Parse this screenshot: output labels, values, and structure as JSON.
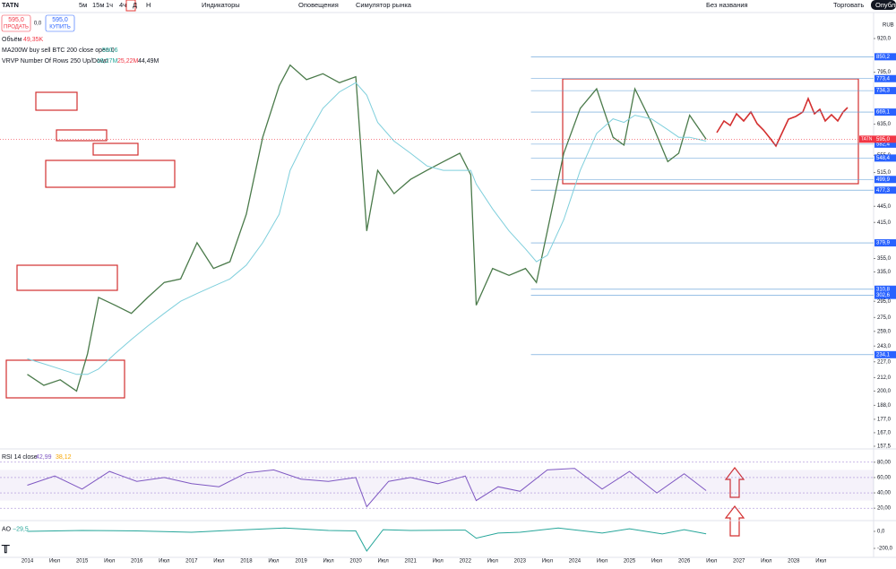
{
  "toolbar": {
    "symbol": "TATN",
    "sell_price": "595,0",
    "sell": "ПРОДАТЬ",
    "spread": "0,0",
    "buy_price": "595,0",
    "buy": "КУПИТЬ",
    "intervals": [
      "5м",
      "15м",
      "1ч",
      "4ч",
      "Д",
      "Н"
    ],
    "indicators": "Индикаторы",
    "alerts": "Оповещения",
    "replay": "Симулятор рынка",
    "layout": "Без названия",
    "trade": "Торговать",
    "publish": "Опубли"
  },
  "legend": {
    "volume": "Объём",
    "volume_value": "49,35K",
    "ma": "MA200W buy sell BTC 200 close open 0",
    "ma_value": "590,6",
    "vrvp": "VRVP Number Of Rows 250 Up/Down",
    "vrvp_up": "19,27M",
    "vrvp_down": "25,22M",
    "vrvp_total": "44,49M",
    "currency": "RUB",
    "price_tag_symbol": "TATN",
    "price_tag": "595,0"
  },
  "chart_data": [
    {
      "type": "line",
      "log_scale": true,
      "x": [
        2014.0,
        2014.3,
        2014.6,
        2014.9,
        2015.1,
        2015.3,
        2015.6,
        2015.9,
        2016.2,
        2016.5,
        2016.8,
        2017.1,
        2017.4,
        2017.7,
        2018.0,
        2018.3,
        2018.6,
        2018.8,
        2019.1,
        2019.4,
        2019.7,
        2020.0,
        2020.2,
        2020.4,
        2020.7,
        2021.0,
        2021.3,
        2021.6,
        2021.9,
        2022.1,
        2022.2,
        2022.5,
        2022.8,
        2023.1,
        2023.3,
        2023.5,
        2023.8,
        2024.1,
        2024.4,
        2024.7,
        2024.9,
        2025.1,
        2025.4,
        2025.7,
        2025.9,
        2026.1,
        2026.4
      ],
      "series": [
        {
          "color": "#4a7a4a",
          "values": [
            215,
            205,
            210,
            200,
            235,
            300,
            290,
            280,
            300,
            320,
            325,
            380,
            340,
            350,
            430,
            600,
            750,
            820,
            770,
            790,
            760,
            780,
            400,
            520,
            470,
            500,
            520,
            540,
            560,
            510,
            290,
            340,
            330,
            340,
            320,
            400,
            560,
            680,
            740,
            600,
            580,
            740,
            640,
            540,
            560,
            660,
            595
          ]
        },
        {
          "color": "#7fcfdc",
          "values": [
            230,
            225,
            220,
            215,
            215,
            220,
            235,
            250,
            265,
            280,
            295,
            305,
            315,
            325,
            345,
            380,
            430,
            520,
            600,
            680,
            730,
            760,
            720,
            640,
            590,
            560,
            530,
            520,
            520,
            520,
            490,
            440,
            400,
            370,
            350,
            360,
            420,
            520,
            610,
            650,
            640,
            660,
            650,
            620,
            600,
            600,
            590
          ]
        }
      ],
      "xlim": [
        2013.5,
        2029.46
      ],
      "xticks": [
        {
          "value": 2014,
          "label": "2014"
        },
        {
          "value": 2014.5,
          "label": "Июл"
        },
        {
          "value": 2015,
          "label": "2015"
        },
        {
          "value": 2015.5,
          "label": "Июл"
        },
        {
          "value": 2016,
          "label": "2016"
        },
        {
          "value": 2016.5,
          "label": "Июл"
        },
        {
          "value": 2017,
          "label": "2017"
        },
        {
          "value": 2017.5,
          "label": "Июл"
        },
        {
          "value": 2018,
          "label": "2018"
        },
        {
          "value": 2018.5,
          "label": "Июл"
        },
        {
          "value": 2019,
          "label": "2019"
        },
        {
          "value": 2019.5,
          "label": "Июл"
        },
        {
          "value": 2020,
          "label": "2020"
        },
        {
          "value": 2020.5,
          "label": "Июл"
        },
        {
          "value": 2021,
          "label": "2021"
        },
        {
          "value": 2021.5,
          "label": "Июл"
        },
        {
          "value": 2022,
          "label": "2022"
        },
        {
          "value": 2022.5,
          "label": "Июл"
        },
        {
          "value": 2023,
          "label": "2023"
        },
        {
          "value": 2023.5,
          "label": "Июл"
        },
        {
          "value": 2024,
          "label": "2024"
        },
        {
          "value": 2024.5,
          "label": "Июл"
        },
        {
          "value": 2025,
          "label": "2025"
        },
        {
          "value": 2025.5,
          "label": "Июл"
        },
        {
          "value": 2026,
          "label": "2026"
        },
        {
          "value": 2026.5,
          "label": "Июл"
        },
        {
          "value": 2027,
          "label": "2027"
        },
        {
          "value": 2027.5,
          "label": "Июл"
        },
        {
          "value": 2028,
          "label": "2028"
        },
        {
          "value": 2028.5,
          "label": "Июл"
        }
      ],
      "ylim": [
        157.5,
        920
      ],
      "yticks": [
        {
          "value": 920,
          "label": "920,0"
        },
        {
          "value": 795,
          "label": "795,0"
        },
        {
          "value": 635,
          "label": "635,0"
        },
        {
          "value": 555,
          "label": "555,0"
        },
        {
          "value": 515,
          "label": "515,0"
        },
        {
          "value": 445,
          "label": "445,0"
        },
        {
          "value": 415,
          "label": "415,0"
        },
        {
          "value": 355,
          "label": "355,0"
        },
        {
          "value": 335,
          "label": "335,0"
        },
        {
          "value": 295,
          "label": "295,0"
        },
        {
          "value": 275,
          "label": "275,0"
        },
        {
          "value": 259,
          "label": "259,0"
        },
        {
          "value": 243,
          "label": "243,0"
        },
        {
          "value": 227,
          "label": "227,0"
        },
        {
          "value": 212,
          "label": "212,0"
        },
        {
          "value": 200,
          "label": "200,0"
        },
        {
          "value": 188,
          "label": "188,0"
        },
        {
          "value": 177,
          "label": "177,0"
        },
        {
          "value": 167,
          "label": "167,0"
        },
        {
          "value": 157.5,
          "label": "157,5"
        }
      ],
      "levels": [
        {
          "value": 850.2,
          "label": "850,2"
        },
        {
          "value": 773.4,
          "label": "773,4"
        },
        {
          "value": 734.3,
          "label": "734,3"
        },
        {
          "value": 669.1,
          "label": "669,1"
        },
        {
          "value": 582.4,
          "label": "582,4"
        },
        {
          "value": 548.4,
          "label": "548,4"
        },
        {
          "value": 499.9,
          "label": "499,9"
        },
        {
          "value": 477.3,
          "label": "477,3"
        },
        {
          "value": 379.9,
          "label": "379,9"
        },
        {
          "value": 310.8,
          "label": "310,8"
        },
        {
          "value": 302.6,
          "label": "302,6"
        },
        {
          "value": 234.1,
          "label": "234,1"
        }
      ]
    },
    {
      "type": "line",
      "title": "RSI 14 close",
      "value_labels": [
        "42,99",
        "38,12"
      ],
      "x": [
        2014.0,
        2014.5,
        2015.0,
        2015.5,
        2016.0,
        2016.5,
        2017.0,
        2017.5,
        2018.0,
        2018.5,
        2019.0,
        2019.5,
        2020.0,
        2020.2,
        2020.6,
        2021.0,
        2021.5,
        2022.0,
        2022.2,
        2022.6,
        2023.0,
        2023.5,
        2024.0,
        2024.5,
        2025.0,
        2025.5,
        2026.0,
        2026.4
      ],
      "series": [
        {
          "color": "#7e57c2",
          "values": [
            50,
            62,
            45,
            68,
            55,
            60,
            52,
            48,
            66,
            70,
            58,
            55,
            60,
            22,
            55,
            60,
            52,
            62,
            30,
            48,
            42,
            70,
            72,
            45,
            68,
            40,
            65,
            43
          ]
        }
      ],
      "ylim": [
        5,
        95
      ],
      "yticks": [
        {
          "value": 80,
          "label": "80,00"
        },
        {
          "value": 60,
          "label": "60,00"
        },
        {
          "value": 40,
          "label": "40,00"
        },
        {
          "value": 20,
          "label": "20,00"
        }
      ]
    },
    {
      "type": "line",
      "title": "AO",
      "value_labels": [
        "−29,5"
      ],
      "x": [
        2014.0,
        2015.0,
        2016.0,
        2017.0,
        2018.0,
        2018.7,
        2019.5,
        2020.0,
        2020.2,
        2020.5,
        2021.0,
        2022.0,
        2022.2,
        2022.6,
        2023.0,
        2023.7,
        2024.5,
        2025.0,
        2025.6,
        2026.0,
        2026.4
      ],
      "series": [
        {
          "color": "#26a69a",
          "values": [
            0,
            10,
            5,
            -10,
            20,
            40,
            10,
            5,
            -230,
            20,
            10,
            15,
            -80,
            -20,
            -10,
            40,
            -20,
            30,
            -30,
            20,
            -29.5
          ]
        }
      ],
      "ylim": [
        -250,
        100
      ],
      "yticks": [
        {
          "value": 0,
          "label": "0,0"
        },
        {
          "value": -200,
          "label": "-200,0"
        }
      ]
    }
  ]
}
